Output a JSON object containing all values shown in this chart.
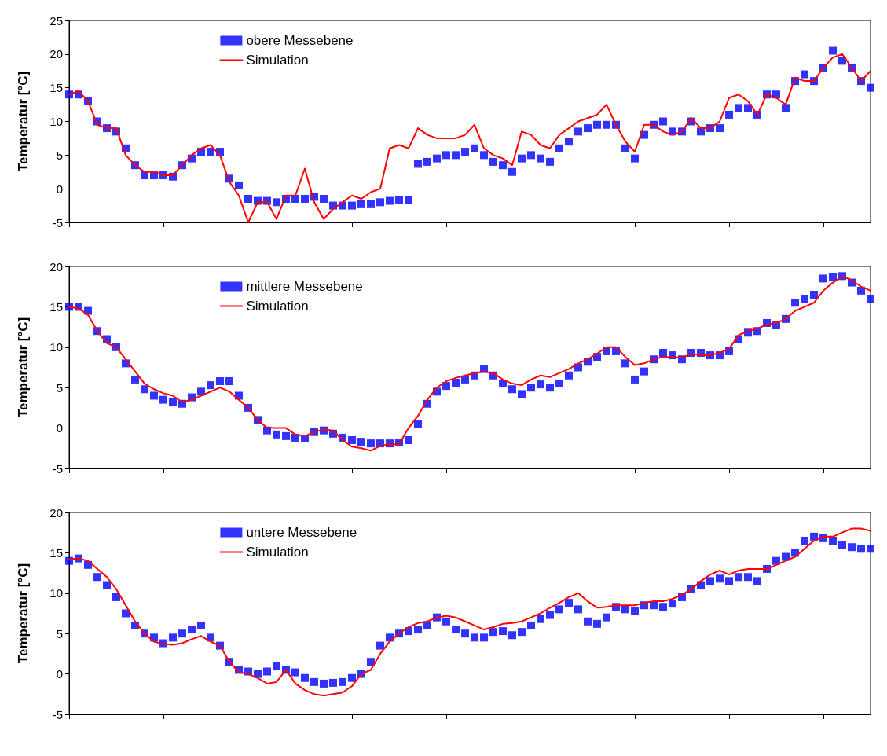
{
  "chart_data": [
    {
      "type": "line",
      "ylabel": "Temperatur [°C]",
      "categories": [
        null,
        null,
        null,
        null,
        null,
        null,
        null,
        null,
        null,
        null,
        null,
        null,
        null,
        null,
        null,
        null,
        null,
        null,
        null,
        null,
        null,
        null,
        null,
        null,
        null,
        null,
        null,
        null,
        null,
        null,
        null,
        null,
        null,
        null,
        null,
        null,
        null,
        null,
        null,
        null,
        null,
        null,
        null,
        null,
        null,
        null,
        null,
        null,
        null,
        null,
        null,
        null,
        null,
        null,
        null,
        null,
        null,
        null,
        null,
        null,
        null,
        null,
        null,
        null,
        null,
        null,
        null,
        null,
        null,
        null,
        null,
        null,
        null,
        null,
        null,
        null,
        null,
        null,
        null,
        null,
        null,
        null,
        null,
        null,
        null,
        null
      ],
      "ylim": [
        -5,
        25
      ],
      "yticks": [
        -5,
        0,
        5,
        10,
        15,
        20,
        25
      ],
      "tick_labels": "y",
      "grid": false,
      "legend": "top left",
      "series": [
        {
          "name": "obere Messebene",
          "type": "scatter",
          "marker": "square",
          "color": "#0000ff",
          "values": [
            14,
            14,
            13,
            10,
            9,
            8.5,
            6,
            3.5,
            2,
            2,
            2,
            1.8,
            3.5,
            4.5,
            5.5,
            5.5,
            5.5,
            1.5,
            0.5,
            -1.5,
            -1.8,
            -1.8,
            -2,
            -1.5,
            -1.5,
            -1.5,
            -1.2,
            -1.5,
            -2.5,
            -2.5,
            -2.5,
            -2.3,
            -2.3,
            -2,
            -1.8,
            -1.7,
            -1.7,
            3.7,
            4,
            4.5,
            5,
            5,
            5.5,
            6,
            5,
            4,
            3.5,
            2.5,
            4.5,
            5,
            4.5,
            4,
            6,
            7,
            8.5,
            9,
            9.5,
            9.5,
            9.5,
            6,
            4.5,
            8,
            9.5,
            10,
            8.5,
            8.5,
            10,
            8.5,
            9,
            9,
            11,
            12,
            12,
            11,
            14,
            14,
            12,
            16,
            17,
            16,
            18,
            20.5,
            19,
            18,
            16,
            15
          ]
        },
        {
          "name": "Simulation",
          "color": "#ff0000",
          "values": [
            14,
            14.5,
            13,
            9.5,
            9,
            9,
            5,
            3.5,
            2.5,
            2.5,
            2,
            2,
            3.5,
            5,
            6,
            6.5,
            5,
            1,
            -1,
            -5,
            -2,
            -2,
            -4.5,
            -1,
            -1,
            3,
            -2,
            -4.5,
            -3,
            -2,
            -1,
            -1.5,
            -0.5,
            0,
            6,
            6.5,
            6,
            9,
            8,
            7.5,
            7.5,
            7.5,
            8,
            9.5,
            6,
            5,
            4.5,
            3.5,
            8.5,
            8,
            6.5,
            6,
            8,
            9,
            10,
            10.5,
            11,
            12.5,
            9.5,
            7,
            5.5,
            9.5,
            9.5,
            8.5,
            8,
            8.5,
            10.5,
            9,
            9,
            10,
            13.5,
            14,
            13,
            11,
            14,
            13.5,
            12.5,
            16.5,
            16,
            16,
            18,
            19.5,
            20,
            18,
            16,
            17.5
          ]
        }
      ]
    },
    {
      "type": "line",
      "ylabel": "Temperatur [°C]",
      "categories": [
        null,
        null,
        null,
        null,
        null,
        null,
        null,
        null,
        null,
        null,
        null,
        null,
        null,
        null,
        null,
        null,
        null,
        null,
        null,
        null,
        null,
        null,
        null,
        null,
        null,
        null,
        null,
        null,
        null,
        null,
        null,
        null,
        null,
        null,
        null,
        null,
        null,
        null,
        null,
        null,
        null,
        null,
        null,
        null,
        null,
        null,
        null,
        null,
        null,
        null,
        null,
        null,
        null,
        null,
        null,
        null,
        null,
        null,
        null,
        null,
        null,
        null,
        null,
        null,
        null,
        null,
        null,
        null,
        null,
        null,
        null,
        null,
        null,
        null,
        null,
        null,
        null,
        null,
        null,
        null,
        null,
        null,
        null,
        null,
        null,
        null
      ],
      "ylim": [
        -5,
        20
      ],
      "yticks": [
        -5,
        0,
        5,
        10,
        15,
        20
      ],
      "tick_labels": "y",
      "grid": false,
      "legend": "top left",
      "series": [
        {
          "name": "mittlere Messebene",
          "type": "scatter",
          "marker": "square",
          "color": "#0000ff",
          "values": [
            15,
            15,
            14.5,
            12,
            11,
            10,
            8,
            6,
            4.8,
            4,
            3.5,
            3.2,
            3,
            3.8,
            4.5,
            5.3,
            5.8,
            5.8,
            4,
            2.5,
            1,
            -0.3,
            -0.8,
            -1,
            -1.2,
            -1.3,
            -0.5,
            -0.3,
            -0.7,
            -1.2,
            -1.5,
            -1.7,
            -1.9,
            -1.9,
            -1.9,
            -1.8,
            -1.5,
            0.5,
            3,
            4.5,
            5.2,
            5.6,
            6,
            6.5,
            7.3,
            6.5,
            5.5,
            4.8,
            4.2,
            5,
            5.4,
            5,
            5.5,
            6.5,
            7.5,
            8.2,
            8.8,
            9.5,
            9.5,
            8,
            6,
            7,
            8.5,
            9.3,
            9,
            8.5,
            9.3,
            9.3,
            9,
            9,
            9.5,
            11,
            11.8,
            12,
            13,
            12.7,
            13.5,
            15.5,
            16,
            16.5,
            18.5,
            18.7,
            18.8,
            18,
            17,
            16
          ]
        },
        {
          "name": "Simulation",
          "color": "#ff0000",
          "values": [
            15,
            14.8,
            14,
            12,
            10.5,
            10,
            8.5,
            7,
            5.5,
            4.8,
            4.3,
            4,
            3.2,
            3.5,
            4,
            4.5,
            5,
            4.5,
            3.5,
            2.5,
            1,
            0,
            0,
            0,
            -0.8,
            -1,
            -0.5,
            -0.2,
            -0.3,
            -1.5,
            -2.3,
            -2.5,
            -2.8,
            -2.2,
            -2,
            -2,
            0,
            1.5,
            3.5,
            5,
            5.8,
            6.2,
            6.5,
            6.8,
            7,
            6.8,
            6,
            5.5,
            5.3,
            6,
            6.5,
            6.3,
            6.8,
            7.3,
            8,
            8.5,
            9.2,
            10,
            10,
            8.8,
            7.8,
            8,
            8.5,
            8.8,
            8.8,
            8.7,
            9.2,
            9,
            9,
            9.3,
            9.8,
            11.5,
            12,
            12.3,
            12.8,
            13,
            13.5,
            14.5,
            15,
            15.5,
            17,
            18,
            18.8,
            18.3,
            17.5,
            17
          ]
        }
      ]
    },
    {
      "type": "line",
      "ylabel": "Temperatur [°C]",
      "categories": [
        null,
        null,
        null,
        null,
        null,
        null,
        null,
        null,
        null,
        null,
        null,
        null,
        null,
        null,
        null,
        null,
        null,
        null,
        null,
        null,
        null,
        null,
        null,
        null,
        null,
        null,
        null,
        null,
        null,
        null,
        null,
        null,
        null,
        null,
        null,
        null,
        null,
        null,
        null,
        null,
        null,
        null,
        null,
        null,
        null,
        null,
        null,
        null,
        null,
        null,
        null,
        null,
        null,
        null,
        null,
        null,
        null,
        null,
        null,
        null,
        null,
        null,
        null,
        null,
        null,
        null,
        null,
        null,
        null,
        null,
        null,
        null,
        null,
        null,
        null,
        null,
        null,
        null,
        null,
        null,
        null,
        null,
        null,
        null,
        null,
        null
      ],
      "ylim": [
        -5,
        20
      ],
      "yticks": [
        -5,
        0,
        5,
        10,
        15,
        20
      ],
      "tick_labels": "y",
      "grid": false,
      "legend": "top left",
      "series": [
        {
          "name": "untere Messebene",
          "type": "scatter",
          "marker": "square",
          "color": "#0000ff",
          "values": [
            14,
            14.3,
            13.5,
            12,
            11,
            9.5,
            7.5,
            6,
            5,
            4.5,
            3.8,
            4.5,
            5,
            5.5,
            6,
            4.5,
            3.5,
            1.5,
            0.5,
            0.3,
            0,
            0.3,
            1,
            0.5,
            0.2,
            -0.5,
            -1,
            -1.2,
            -1.1,
            -1,
            -0.5,
            0,
            1.5,
            3.5,
            4.5,
            5,
            5.3,
            5.5,
            6,
            7,
            6.5,
            5.5,
            5,
            4.5,
            4.5,
            5.2,
            5.3,
            4.8,
            5.2,
            6,
            6.8,
            7.3,
            8,
            8.8,
            8,
            6.5,
            6.2,
            7,
            8.3,
            8,
            7.8,
            8.5,
            8.5,
            8.3,
            8.7,
            9.5,
            10.5,
            11,
            11.5,
            11.8,
            11.5,
            12,
            12,
            11.5,
            13,
            14,
            14.5,
            15,
            16.5,
            17,
            16.8,
            16.5,
            16,
            15.7,
            15.5,
            15.5
          ]
        },
        {
          "name": "Simulation",
          "color": "#ff0000",
          "values": [
            14.2,
            14.3,
            14,
            13,
            12,
            10.5,
            8.5,
            6.5,
            5,
            4,
            3.7,
            3.6,
            3.8,
            4.3,
            4.7,
            4,
            3.5,
            1.5,
            0.2,
            0,
            -0.5,
            -1.2,
            -1,
            0.5,
            -1.2,
            -2,
            -2.5,
            -2.7,
            -2.5,
            -2.3,
            -1.5,
            0,
            0.5,
            2.5,
            4,
            5,
            5.8,
            6.3,
            6.5,
            7,
            7.2,
            7,
            6.5,
            6,
            5.5,
            5.8,
            6.2,
            6.3,
            6.5,
            7,
            7.5,
            8.2,
            8.8,
            9.5,
            10,
            9,
            8.2,
            8.3,
            8.5,
            8.5,
            8.5,
            8.8,
            9,
            9,
            9.3,
            9.8,
            10.5,
            11.5,
            12.3,
            12.8,
            12.3,
            12.8,
            13,
            13,
            13,
            13.5,
            14,
            14.5,
            15.5,
            16.5,
            17,
            17,
            17.5,
            18,
            18,
            17.7
          ]
        }
      ]
    }
  ]
}
